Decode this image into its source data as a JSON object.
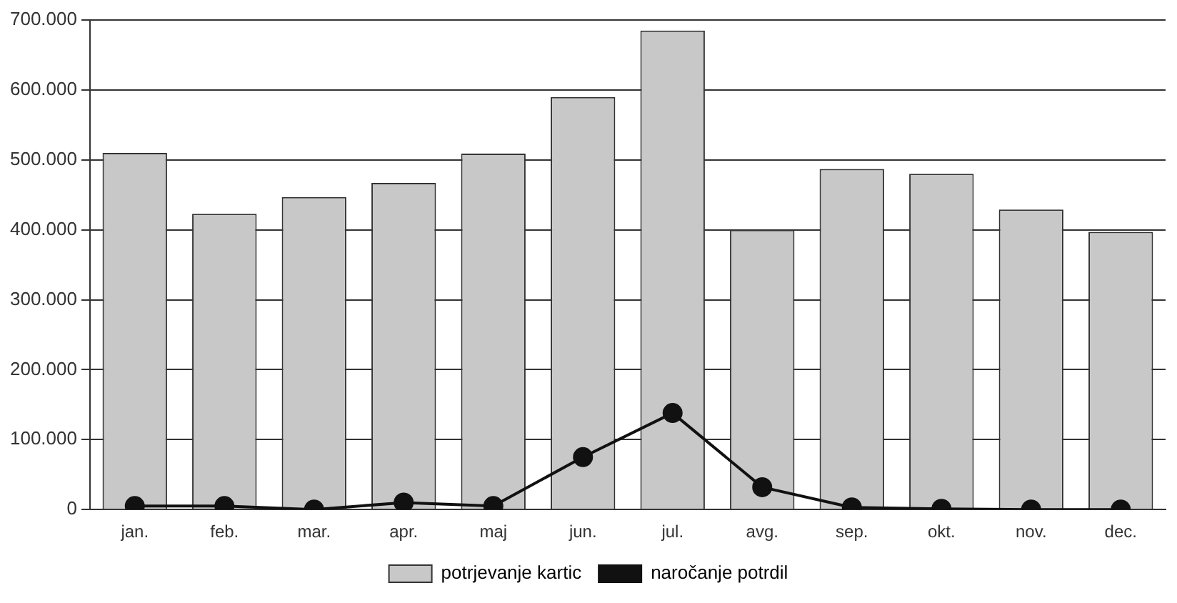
{
  "chart_data": {
    "type": "bar",
    "categories": [
      "jan.",
      "feb.",
      "mar.",
      "apr.",
      "maj",
      "jun.",
      "jul.",
      "avg.",
      "sep.",
      "okt.",
      "nov.",
      "dec."
    ],
    "series": [
      {
        "name": "potrjevanje kartic",
        "color": "#c8c8c8",
        "values": [
          510000,
          423000,
          447000,
          467000,
          509000,
          590000,
          685000,
          400000,
          487000,
          480000,
          429000,
          397000
        ]
      },
      {
        "name": "naročanje potrdil",
        "type": "line",
        "color": "#111111",
        "marker": "circle",
        "values": [
          5000,
          5000,
          0,
          10000,
          5000,
          75000,
          138000,
          32000,
          3000,
          1000,
          0,
          0
        ]
      }
    ],
    "ylim": [
      0,
      700000
    ],
    "yticks": [
      {
        "value": 0,
        "label": "0"
      },
      {
        "value": 100000,
        "label": "100.000"
      },
      {
        "value": 200000,
        "label": "200.000"
      },
      {
        "value": 300000,
        "label": "300.000"
      },
      {
        "value": 400000,
        "label": "400.000"
      },
      {
        "value": 500000,
        "label": "500.000"
      },
      {
        "value": 600000,
        "label": "600.000"
      },
      {
        "value": 700000,
        "label": "700.000"
      }
    ],
    "grid": "y",
    "legend": "bottom"
  }
}
